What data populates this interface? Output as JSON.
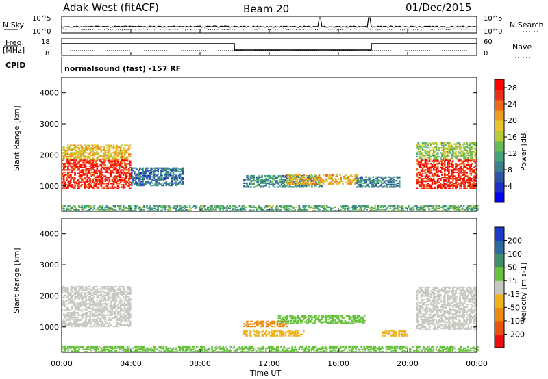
{
  "header": {
    "radar": "Adak West (fitACF)",
    "beam": "Beam 20",
    "date": "01/Dec/2015"
  },
  "top_panel": {
    "left_label": "N.Sky",
    "left_ticks": [
      "10^5",
      "10^0"
    ],
    "right_ticks": [
      "10^5",
      "10^0"
    ],
    "right_label": "N.Search"
  },
  "freq_panel": {
    "left_label_1": "Freq.",
    "left_label_2": "[MHz]",
    "left_ticks": [
      "18",
      "8"
    ],
    "right_ticks": [
      "60",
      "0"
    ],
    "right_label": "Nave",
    "cpid_label": "CPID",
    "cpid_text": "normalsound (fast) -157 RF"
  },
  "chart_data": [
    {
      "type": "heatmap",
      "name": "power",
      "ylabel": "Slant Range [km]",
      "xlabel": "Time UT",
      "x_ticks": [
        "00:00",
        "04:00",
        "08:00",
        "12:00",
        "16:00",
        "20:00",
        "00:00"
      ],
      "x_range_hours": [
        0,
        24
      ],
      "y_ticks": [
        "1000",
        "2000",
        "3000",
        "4000"
      ],
      "ylim": [
        180,
        4500
      ],
      "colorbar": {
        "label": "Power [dB]",
        "ticks": [
          "4",
          "8",
          "12",
          "16",
          "20",
          "24",
          "28"
        ],
        "range": [
          0,
          30
        ],
        "colors": [
          "#0000ee",
          "#1e2ec6",
          "#2c55a6",
          "#3c7f8c",
          "#45a47a",
          "#66bb5a",
          "#b8c93a",
          "#e8c52a",
          "#ef9a20",
          "#ef6a18",
          "#e8301a",
          "#ff0000"
        ]
      },
      "regions": [
        {
          "t": [
            0.0,
            4.0
          ],
          "r": [
            900,
            1850
          ],
          "value": 27
        },
        {
          "t": [
            0.0,
            4.0
          ],
          "r": [
            1850,
            2300
          ],
          "value": 19
        },
        {
          "t": [
            4.0,
            7.0
          ],
          "r": [
            1000,
            1600
          ],
          "value": 8
        },
        {
          "t": [
            10.5,
            15.0
          ],
          "r": [
            950,
            1350
          ],
          "value": 10
        },
        {
          "t": [
            13.0,
            17.0
          ],
          "r": [
            1050,
            1350
          ],
          "value": 20
        },
        {
          "t": [
            17.0,
            19.5
          ],
          "r": [
            950,
            1300
          ],
          "value": 9
        },
        {
          "t": [
            20.5,
            24.0
          ],
          "r": [
            900,
            1850
          ],
          "value": 27
        },
        {
          "t": [
            20.5,
            24.0
          ],
          "r": [
            1850,
            2400
          ],
          "value": 15
        },
        {
          "t": [
            0.0,
            24.0
          ],
          "r": [
            180,
            350
          ],
          "value": 12
        }
      ]
    },
    {
      "type": "heatmap",
      "name": "velocity",
      "ylabel": "Slant Range [km]",
      "xlabel": "Time UT",
      "x_ticks": [
        "00:00",
        "04:00",
        "08:00",
        "12:00",
        "16:00",
        "20:00",
        "00:00"
      ],
      "x_range_hours": [
        0,
        24
      ],
      "y_ticks": [
        "1000",
        "2000",
        "3000",
        "4000"
      ],
      "ylim": [
        180,
        4500
      ],
      "colorbar": {
        "label": "Velocity [m s-1]",
        "ticks": [
          "200",
          "100",
          "50",
          "15",
          "-15",
          "-50",
          "-100",
          "-200"
        ],
        "range": [
          -250,
          250
        ],
        "colors": [
          "#1c3cc8",
          "#2c6aa0",
          "#3f8f6a",
          "#66c23a",
          "#c8c8c0",
          "#f0b31a",
          "#ee8a10",
          "#e85510",
          "#ee1010"
        ]
      },
      "regions": [
        {
          "t": [
            0.0,
            4.0
          ],
          "r": [
            1000,
            2300
          ],
          "value": 0
        },
        {
          "t": [
            10.5,
            13.0
          ],
          "r": [
            1000,
            1200
          ],
          "value": -120
        },
        {
          "t": [
            12.5,
            17.5
          ],
          "r": [
            1100,
            1350
          ],
          "value": 40
        },
        {
          "t": [
            10.5,
            14.0
          ],
          "r": [
            700,
            900
          ],
          "value": -40
        },
        {
          "t": [
            18.5,
            20.0
          ],
          "r": [
            700,
            900
          ],
          "value": -40
        },
        {
          "t": [
            20.5,
            24.0
          ],
          "r": [
            900,
            2300
          ],
          "value": 0
        },
        {
          "t": [
            0.0,
            24.0
          ],
          "r": [
            180,
            350
          ],
          "value": 40
        }
      ]
    }
  ],
  "colors": {
    "axis": "#000000",
    "background": "#ffffff"
  }
}
